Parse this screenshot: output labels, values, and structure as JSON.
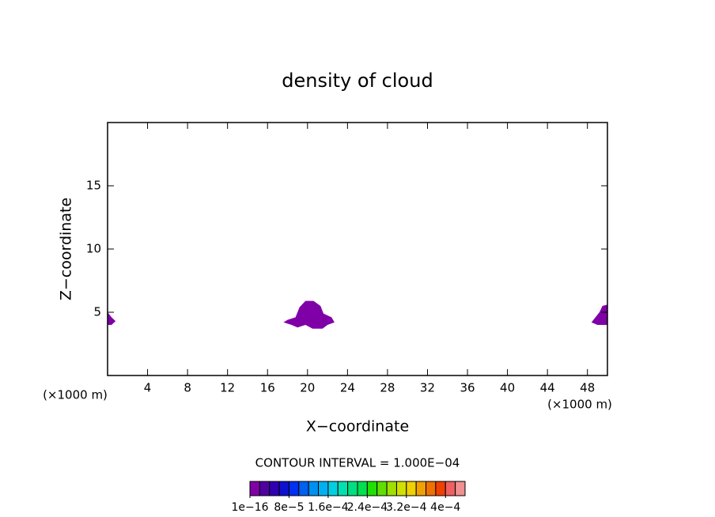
{
  "chart_data": {
    "type": "contour",
    "title": "density of cloud",
    "xlabel": "X−coordinate",
    "ylabel": "Z−coordinate",
    "xlabel_unit": "(×1000 m)",
    "ylabel_unit": "(×1000 m)",
    "xlim": [
      0,
      50
    ],
    "ylim": [
      0,
      20
    ],
    "xticks": [
      4,
      8,
      12,
      16,
      20,
      24,
      28,
      32,
      36,
      40,
      44,
      48
    ],
    "yticks": [
      5,
      10,
      15
    ],
    "regions": [
      {
        "color": "#8000a8",
        "x": [
          17.6,
          18,
          18.8,
          19.2,
          19.8,
          20.6,
          21.3,
          21.6,
          22.4,
          22.7,
          22,
          21.5,
          20.5,
          19.8,
          19,
          18.4
        ],
        "z": [
          4.2,
          4.4,
          4.6,
          5.4,
          5.9,
          5.9,
          5.5,
          4.9,
          4.6,
          4.2,
          4.0,
          3.7,
          3.7,
          4.0,
          3.8,
          4.0
        ]
      },
      {
        "color": "#8000a8",
        "x": [
          48.4,
          48.8,
          49.2,
          49.5,
          50,
          50,
          49
        ],
        "z": [
          4.2,
          4.6,
          5.0,
          5.5,
          5.6,
          4.0,
          4.0
        ]
      },
      {
        "color": "#8000a8",
        "x": [
          0,
          0.4,
          0.8,
          0.4,
          0
        ],
        "z": [
          5.0,
          4.6,
          4.3,
          4.0,
          4.0
        ]
      }
    ],
    "contour_interval": "CONTOUR INTERVAL = 1.000E−04",
    "colorbar": {
      "colors": [
        "#8000a8",
        "#5000a0",
        "#3000b0",
        "#1010d0",
        "#0030f0",
        "#0060f0",
        "#0090f0",
        "#00b0f0",
        "#00d0e0",
        "#00e0b0",
        "#00e080",
        "#00e050",
        "#20e000",
        "#60e000",
        "#a0e000",
        "#d0e000",
        "#f0d000",
        "#f0a000",
        "#f07000",
        "#f04000",
        "#f06060",
        "#f09090"
      ],
      "lim": [
        0,
        0.00044
      ],
      "ticks": [
        {
          "value": 1e-16,
          "label": "1e−16"
        },
        {
          "value": 8e-05,
          "label": "8e−5"
        },
        {
          "value": 0.00016,
          "label": "1.6e−4"
        },
        {
          "value": 0.00024,
          "label": "2.4e−4"
        },
        {
          "value": 0.00032,
          "label": "3.2e−4"
        },
        {
          "value": 0.0004,
          "label": "4e−4"
        }
      ]
    }
  }
}
